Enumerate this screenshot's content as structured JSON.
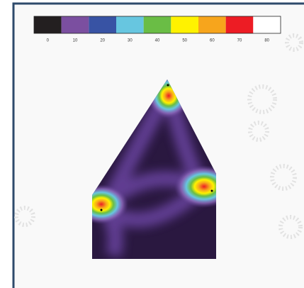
{
  "colorbar": {
    "colors": [
      "#231f20",
      "#7b4fa0",
      "#3853a4",
      "#67c6e0",
      "#6abd45",
      "#fff200",
      "#f7a51c",
      "#ed1c24",
      "#ffffff"
    ],
    "labels": [
      "0",
      "10",
      "20",
      "30",
      "40",
      "50",
      "60",
      "70",
      "80"
    ]
  }
}
